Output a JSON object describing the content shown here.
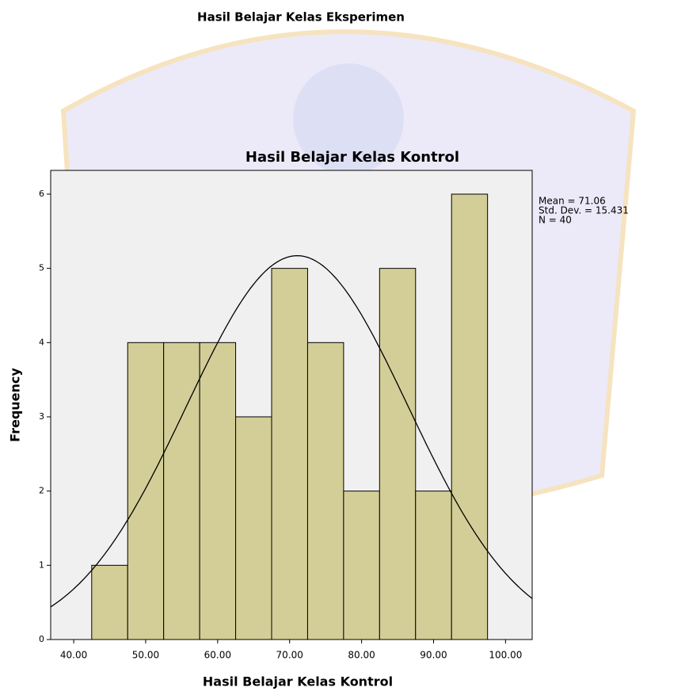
{
  "heading": "Hasil Belajar Kelas Eksperimen",
  "chart_data": {
    "type": "histogram",
    "title": "Hasil Belajar Kelas Kontrol",
    "xlabel": "Hasil Belajar Kelas Kontrol",
    "ylabel": "Frequency",
    "bins": [
      42.5,
      47.5,
      52.5,
      57.5,
      62.5,
      67.5,
      72.5,
      77.5,
      82.5,
      87.5,
      92.5,
      97.5
    ],
    "values": [
      1,
      4,
      4,
      4,
      3,
      5,
      4,
      2,
      5,
      2,
      6
    ],
    "color": "#d3ce97",
    "xlim": [
      36.8,
      103.7
    ],
    "xticks": [
      {
        "value": 40,
        "label": "40.00"
      },
      {
        "value": 50,
        "label": "50.00"
      },
      {
        "value": 60,
        "label": "60.00"
      },
      {
        "value": 70,
        "label": "70.00"
      },
      {
        "value": 80,
        "label": "80.00"
      },
      {
        "value": 90,
        "label": "90.00"
      },
      {
        "value": 100,
        "label": "100.00"
      }
    ],
    "ylim": [
      0,
      6.32
    ],
    "yticks": [
      0,
      1,
      2,
      3,
      4,
      5,
      6
    ],
    "stats": [
      {
        "value": 71.06,
        "label": "Mean = 71.06"
      },
      {
        "value": 15.431,
        "label": "Std. Dev. = 15.431"
      },
      {
        "value": 40,
        "label": "N = 40"
      }
    ]
  }
}
